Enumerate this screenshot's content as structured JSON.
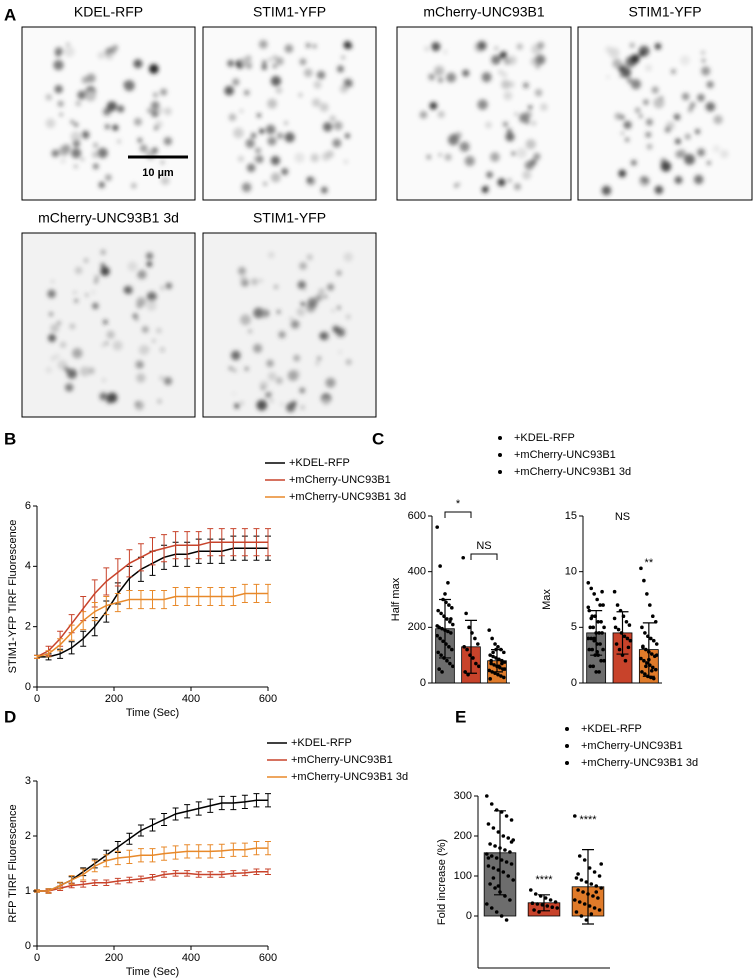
{
  "panel_labels": [
    "A",
    "B",
    "C",
    "D",
    "E"
  ],
  "images": [
    {
      "label": "KDEL-RFP"
    },
    {
      "label": "STIM1-YFP"
    },
    {
      "label": "mCherry-UNC93B1"
    },
    {
      "label": "STIM1-YFP"
    },
    {
      "label": "mCherry-UNC93B1 3d"
    },
    {
      "label": "STIM1-YFP"
    }
  ],
  "scale_bar": "10 µm",
  "chart_data": [
    {
      "type": "line",
      "ylabel": "STIM1-YFP TIRF Fluorescence",
      "xlabel": "Time (Sec)",
      "xlim": [
        0,
        600
      ],
      "xticks": [
        0,
        200,
        400,
        600
      ],
      "ylim": [
        0,
        6
      ],
      "yticks": [
        0,
        2,
        4,
        6
      ],
      "x": [
        0,
        30,
        60,
        90,
        120,
        150,
        180,
        210,
        240,
        270,
        300,
        330,
        360,
        390,
        420,
        450,
        480,
        510,
        540,
        570,
        600
      ],
      "series": [
        {
          "name": "+KDEL-RFP",
          "color": "#000000",
          "values": [
            1,
            1,
            1.1,
            1.3,
            1.6,
            2,
            2.5,
            3.1,
            3.6,
            3.9,
            4.1,
            4.3,
            4.4,
            4.4,
            4.5,
            4.5,
            4.5,
            4.6,
            4.6,
            4.6,
            4.6
          ],
          "errors": [
            0.05,
            0.1,
            0.15,
            0.2,
            0.25,
            0.3,
            0.35,
            0.35,
            0.4,
            0.4,
            0.4,
            0.4,
            0.4,
            0.4,
            0.4,
            0.4,
            0.4,
            0.4,
            0.4,
            0.4,
            0.4
          ]
        },
        {
          "name": "+mCherry-UNC93B1",
          "color": "#c8432b",
          "values": [
            1,
            1.2,
            1.6,
            2.1,
            2.6,
            3.1,
            3.5,
            3.8,
            4.1,
            4.3,
            4.5,
            4.6,
            4.7,
            4.7,
            4.7,
            4.8,
            4.8,
            4.8,
            4.8,
            4.8,
            4.8
          ],
          "errors": [
            0.05,
            0.15,
            0.25,
            0.3,
            0.4,
            0.45,
            0.45,
            0.45,
            0.45,
            0.45,
            0.45,
            0.45,
            0.45,
            0.45,
            0.45,
            0.45,
            0.45,
            0.45,
            0.45,
            0.45,
            0.45
          ]
        },
        {
          "name": "+mCherry-UNC93B1 3d",
          "color": "#e8892a",
          "values": [
            1,
            1.1,
            1.4,
            1.8,
            2.2,
            2.5,
            2.7,
            2.8,
            2.9,
            2.9,
            2.9,
            2.9,
            3,
            3,
            3,
            3,
            3,
            3,
            3.1,
            3.1,
            3.1
          ],
          "errors": [
            0.05,
            0.1,
            0.2,
            0.25,
            0.3,
            0.3,
            0.3,
            0.3,
            0.3,
            0.3,
            0.3,
            0.3,
            0.3,
            0.3,
            0.3,
            0.3,
            0.3,
            0.3,
            0.3,
            0.3,
            0.3
          ]
        }
      ]
    },
    {
      "type": "bar",
      "ylabel": "Half max",
      "ylim": [
        0,
        600
      ],
      "yticks": [
        0,
        200,
        400,
        600
      ],
      "annotations": [
        "*",
        "NS"
      ],
      "series": [
        {
          "name": "+KDEL-RFP",
          "color": "#6d6d6d",
          "value": 195,
          "error": 105,
          "points": [
            560,
            420,
            300,
            290,
            280,
            270,
            260,
            250,
            240,
            230,
            220,
            210,
            200,
            195,
            190,
            185,
            180,
            170,
            160,
            150,
            140,
            130,
            120,
            110,
            100,
            90,
            80,
            70,
            60,
            50,
            40,
            320,
            360,
            230,
            205
          ]
        },
        {
          "name": "+mCherry-UNC93B1",
          "color": "#c8432b",
          "value": 130,
          "error": 95,
          "points": [
            450,
            250,
            200,
            180,
            160,
            140,
            130,
            120,
            100,
            90,
            70,
            60,
            40,
            30
          ]
        },
        {
          "name": "+mCherry-UNC93B1 3d",
          "color": "#e07b2a",
          "value": 80,
          "error": 40,
          "points": [
            190,
            160,
            140,
            130,
            120,
            110,
            100,
            95,
            90,
            85,
            80,
            75,
            70,
            65,
            60,
            55,
            50,
            45,
            40,
            35,
            30,
            25,
            20,
            15,
            110,
            120,
            60,
            70,
            50,
            80
          ]
        }
      ]
    },
    {
      "type": "bar",
      "ylabel": "Max",
      "ylim": [
        0,
        15
      ],
      "yticks": [
        0,
        5,
        10,
        15
      ],
      "annotations": [
        "NS",
        "**"
      ],
      "series": [
        {
          "color": "#6d6d6d",
          "value": 4.5,
          "error": 2,
          "points": [
            9,
            8.5,
            8,
            7.5,
            7,
            7,
            6.5,
            6,
            6,
            5.5,
            5.5,
            5,
            5,
            5,
            4.5,
            4.5,
            4.5,
            4,
            4,
            4,
            3.5,
            3.5,
            3,
            3,
            3,
            2.5,
            2.5,
            2,
            2,
            1.5,
            1.5,
            1,
            1,
            8.2,
            6.8,
            5.8,
            3.8,
            2.8
          ]
        },
        {
          "color": "#c8432b",
          "value": 4.5,
          "error": 1.9,
          "points": [
            8.2,
            7,
            6.5,
            6,
            5.5,
            5.2,
            5,
            4.8,
            4.5,
            4.2,
            4,
            3.8,
            3.5,
            3,
            2.5,
            2,
            3.2,
            5.8
          ]
        },
        {
          "color": "#e07b2a",
          "value": 3,
          "error": 2.4,
          "points": [
            10.3,
            9.2,
            8,
            7,
            6,
            5.5,
            5,
            4.5,
            4.2,
            4,
            3.8,
            3.5,
            3.2,
            3,
            2.8,
            2.6,
            2.4,
            2.2,
            2,
            1.8,
            1.6,
            1.4,
            1.2,
            1,
            0.8,
            0.6,
            0.5,
            0.4,
            2.5,
            3.3,
            1.5,
            2.1,
            1.1
          ]
        }
      ]
    },
    {
      "type": "line",
      "ylabel": "RFP TIRF Fluorescence",
      "xlabel": "Time (Sec)",
      "xlim": [
        0,
        600
      ],
      "xticks": [
        0,
        200,
        400,
        600
      ],
      "ylim": [
        0,
        3
      ],
      "yticks": [
        0,
        1,
        2,
        3
      ],
      "x": [
        0,
        30,
        60,
        90,
        120,
        150,
        180,
        210,
        240,
        270,
        300,
        330,
        360,
        390,
        420,
        450,
        480,
        510,
        540,
        570,
        600
      ],
      "series": [
        {
          "name": "+KDEL-RFP",
          "color": "#000000",
          "values": [
            1,
            1,
            1.1,
            1.2,
            1.35,
            1.5,
            1.65,
            1.8,
            1.95,
            2.1,
            2.2,
            2.3,
            2.4,
            2.45,
            2.5,
            2.55,
            2.6,
            2.6,
            2.62,
            2.65,
            2.65
          ],
          "errors": [
            0.02,
            0.04,
            0.05,
            0.06,
            0.07,
            0.08,
            0.09,
            0.1,
            0.1,
            0.1,
            0.11,
            0.11,
            0.11,
            0.12,
            0.12,
            0.12,
            0.12,
            0.12,
            0.12,
            0.12,
            0.12
          ]
        },
        {
          "name": "+mCherry-UNC93B1",
          "color": "#c8432b",
          "values": [
            1,
            1,
            1.05,
            1.1,
            1.12,
            1.15,
            1.15,
            1.18,
            1.2,
            1.22,
            1.25,
            1.3,
            1.32,
            1.32,
            1.3,
            1.3,
            1.3,
            1.32,
            1.33,
            1.35,
            1.35
          ],
          "errors": [
            0.02,
            0.03,
            0.04,
            0.04,
            0.05,
            0.05,
            0.05,
            0.05,
            0.05,
            0.05,
            0.05,
            0.05,
            0.05,
            0.05,
            0.05,
            0.05,
            0.05,
            0.05,
            0.05,
            0.05,
            0.05
          ]
        },
        {
          "name": "+mCherry-UNC93B1 3d",
          "color": "#e8892a",
          "values": [
            1,
            1,
            1.1,
            1.2,
            1.3,
            1.45,
            1.55,
            1.6,
            1.62,
            1.65,
            1.65,
            1.68,
            1.7,
            1.72,
            1.72,
            1.72,
            1.73,
            1.75,
            1.75,
            1.78,
            1.78
          ],
          "errors": [
            0.02,
            0.04,
            0.06,
            0.08,
            0.1,
            0.1,
            0.11,
            0.12,
            0.12,
            0.12,
            0.12,
            0.12,
            0.12,
            0.12,
            0.12,
            0.12,
            0.12,
            0.12,
            0.12,
            0.12,
            0.12
          ]
        }
      ]
    },
    {
      "type": "bar",
      "ylabel": "Fold increase (%)",
      "ylim": [
        -130,
        300
      ],
      "yticks": [
        0,
        100,
        200,
        300
      ],
      "annotations": [
        "****",
        "****"
      ],
      "series": [
        {
          "name": "+KDEL-RFP",
          "color": "#6d6d6d",
          "value": 158,
          "error": 105,
          "points": [
            300,
            280,
            265,
            260,
            250,
            240,
            230,
            220,
            210,
            200,
            195,
            190,
            180,
            175,
            170,
            165,
            160,
            155,
            150,
            145,
            140,
            135,
            130,
            125,
            120,
            115,
            110,
            100,
            90,
            80,
            70,
            60,
            50,
            40,
            30,
            20,
            10,
            0,
            -10,
            185,
            145,
            95,
            75
          ]
        },
        {
          "name": "+mCherry-UNC93B1",
          "color": "#c8432b",
          "value": 33,
          "error": 20,
          "points": [
            65,
            55,
            50,
            45,
            40,
            35,
            32,
            30,
            28,
            25,
            22,
            20,
            15,
            10
          ]
        },
        {
          "name": "+mCherry-UNC93B1 3d",
          "color": "#e07b2a",
          "value": 73,
          "error": 93,
          "points": [
            250,
            150,
            140,
            120,
            110,
            100,
            95,
            90,
            85,
            80,
            75,
            70,
            65,
            60,
            55,
            50,
            45,
            40,
            35,
            30,
            25,
            20,
            15,
            10,
            0,
            -10,
            5,
            60,
            130,
            105
          ]
        }
      ]
    }
  ]
}
